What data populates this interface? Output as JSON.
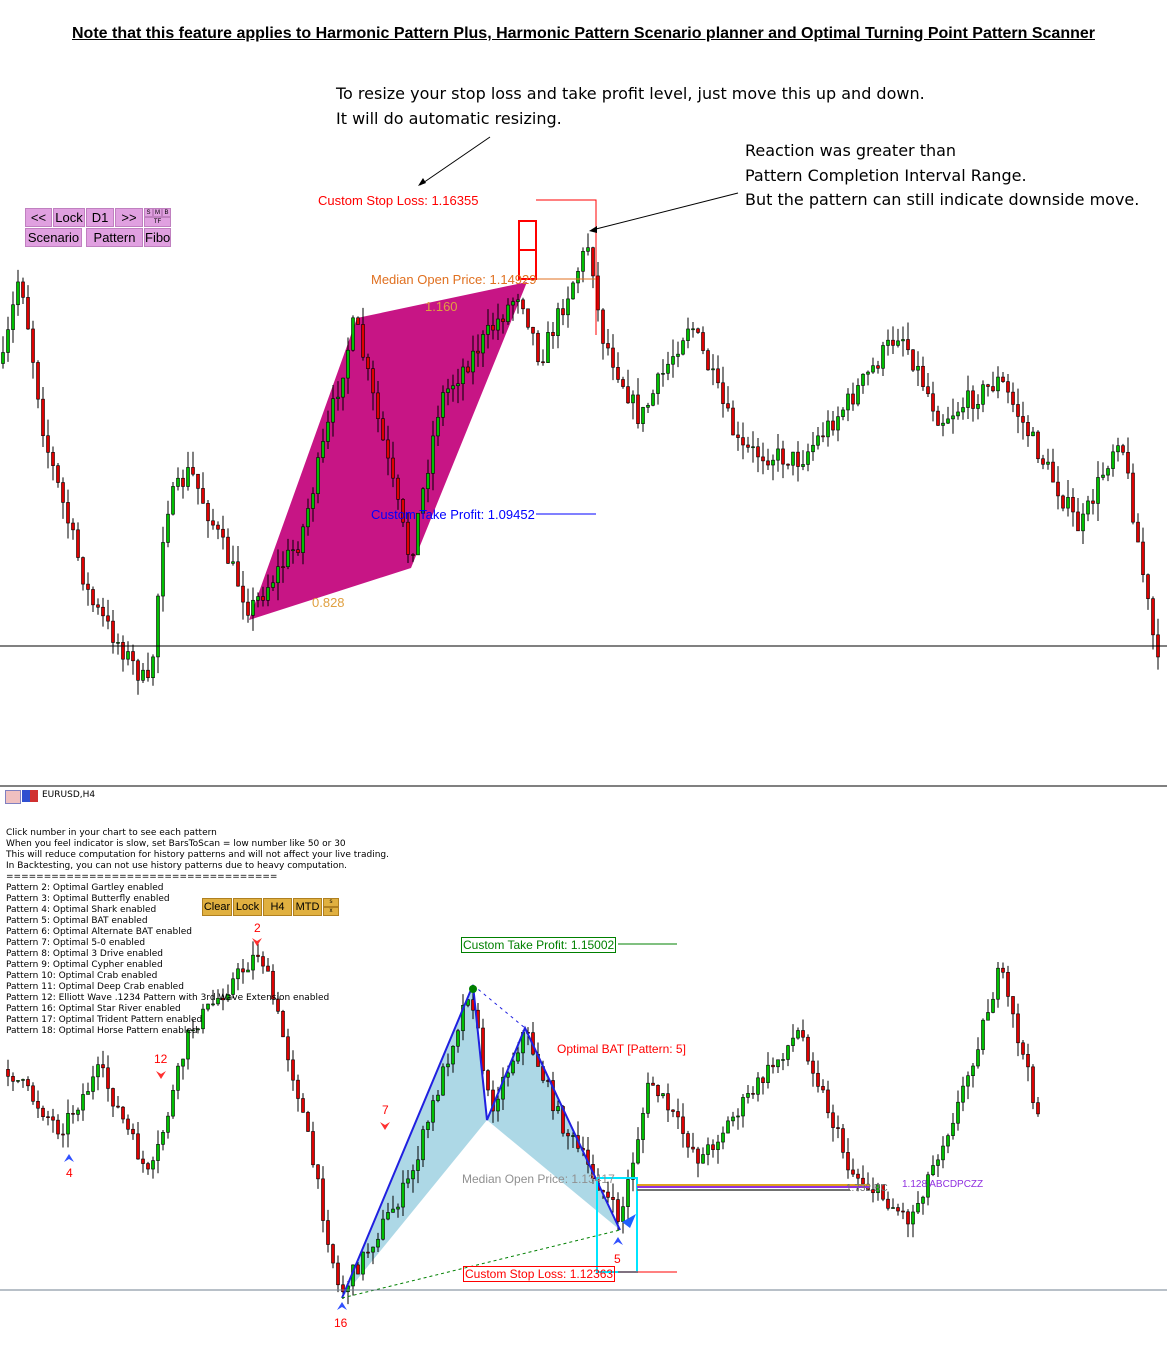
{
  "notice": "Note that this feature applies to Harmonic Pattern Plus, Harmonic Pattern Scenario planner and Optimal Turning Point Pattern Scanner",
  "annotations": {
    "resize_line1": "To resize your stop loss and take profit level, just move this up and down.",
    "resize_line2": "It will do automatic resizing.",
    "reaction_line1": "Reaction was greater than",
    "reaction_line2": "Pattern Completion Interval Range.",
    "reaction_line3": "But the pattern can still indicate downside move."
  },
  "top_panel": {
    "buttons": {
      "prev": "<<",
      "lock": "Lock",
      "timeframe": "D1",
      "next": ">>",
      "s": "S",
      "m": "M",
      "b": "B",
      "tf": "TF",
      "scenario": "Scenario",
      "pattern": "Pattern",
      "fibo": "Fibo"
    },
    "labels": {
      "stop_loss": "Custom Stop Loss: 1.16355",
      "median_open": "Median Open Price: 1.14929",
      "take_profit": "Custom Take Profit: 1.09452",
      "ratio_top": "1.160",
      "ratio_bottom": "0.828"
    },
    "colors": {
      "pattern_fill": "#c71585",
      "stop_loss": "#ff0000",
      "median": "#e07020",
      "take_profit": "#0000ff",
      "bull": "#00c000",
      "bear": "#e00000"
    }
  },
  "bottom_panel": {
    "symbol": "EURUSD,H4",
    "info_lines": [
      "Click number in your chart to see each pattern",
      "When you feel indicator is slow, set BarsToScan = low number like 50 or 30",
      "This will reduce computation for history patterns and will not affect your live trading.",
      "In Backtesting, you can not use history patterns due to heavy computation.",
      "===================================="
    ],
    "patterns": [
      "Pattern 2: Optimal Gartley enabled",
      "Pattern 3: Optimal Butterfly enabled",
      "Pattern 4: Optimal Shark enabled",
      "Pattern 5: Optimal BAT enabled",
      "Pattern 6: Optimal Alternate BAT enabled",
      "Pattern 7: Optimal 5-0 enabled",
      "Pattern 8: Optimal 3 Drive enabled",
      "Pattern 9: Optimal Cypher enabled",
      "Pattern 10: Optimal Crab enabled",
      "Pattern 11: Optimal Deep Crab enabled",
      "Pattern 12: Elliott Wave .1234 Pattern with 3rd Wave Extension enabled",
      "Pattern 16: Optimal Star River enabled",
      "Pattern 17: Optimal Trident Pattern enabled",
      "Pattern 18: Optimal Horse Pattern enabled"
    ],
    "buttons": {
      "clear": "Clear",
      "lock": "Lock",
      "timeframe": "H4",
      "mtd": "MTD",
      "s": "s",
      "x": "x"
    },
    "labels": {
      "take_profit": "Custom Take Profit: 1.15002",
      "pattern_name": "Optimal BAT [Pattern: 5]",
      "median_open": "Median Open Price: 1.13417",
      "stop_loss": "Custom Stop Loss: 1.12363",
      "level_a": "1.732 BC",
      "level_b": "1.128 ABCDPCZZ"
    },
    "markers": {
      "m2": "2",
      "m4": "4",
      "m12": "12",
      "m7": "7",
      "m5": "5",
      "m16": "16"
    },
    "colors": {
      "pattern_fill": "#add8e6",
      "pattern_edge": "#2020e0",
      "stop_loss": "#ff0000",
      "take_profit": "#008000",
      "box": "#00e5ff"
    }
  }
}
